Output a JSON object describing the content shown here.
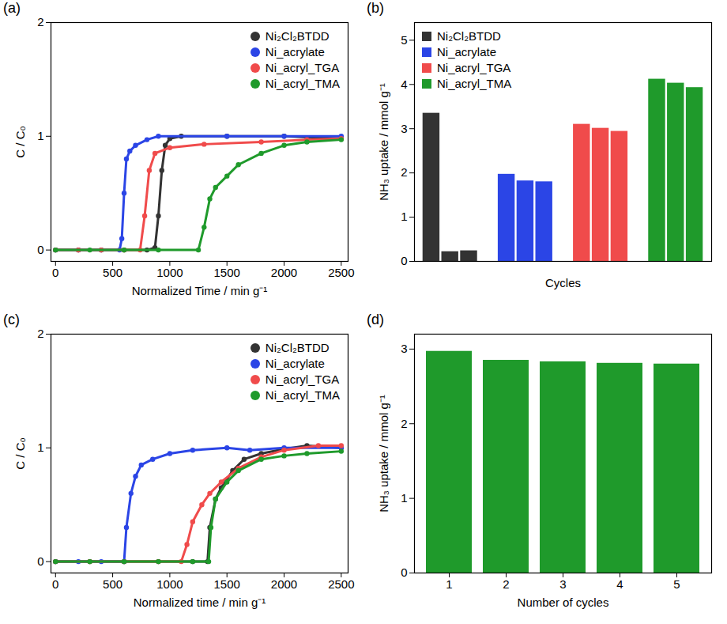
{
  "chart_data": [
    {
      "title": "(a)",
      "type": "line",
      "x_label": "Normalized Time / min g⁻¹",
      "y_label": "C / C₀",
      "xlim": [
        -40,
        2560
      ],
      "xticks": [
        0,
        500,
        1000,
        1500,
        2000,
        2500
      ],
      "ylim": [
        -0.1,
        2
      ],
      "yticks": [
        0,
        1,
        2
      ],
      "legend": "upper right",
      "series": [
        {
          "name": "Ni₂Cl₂BTDD",
          "color": "#333333",
          "marker": "circle",
          "x": [
            0,
            200,
            400,
            600,
            800,
            870,
            900,
            930,
            960,
            1000,
            1100,
            1500,
            2000,
            2500
          ],
          "values": [
            0,
            0,
            0,
            0,
            0,
            0.02,
            0.3,
            0.7,
            0.92,
            0.98,
            1.0,
            1.0,
            1.0,
            0.98
          ]
        },
        {
          "name": "Ni_acrylate",
          "color": "#2b45e6",
          "marker": "circle",
          "x": [
            0,
            200,
            400,
            560,
            580,
            600,
            620,
            650,
            700,
            800,
            900,
            1500,
            2000,
            2500
          ],
          "values": [
            0,
            0,
            0,
            0,
            0.1,
            0.5,
            0.8,
            0.87,
            0.92,
            0.97,
            1.0,
            1.0,
            1.0,
            1.0
          ]
        },
        {
          "name": "Ni_acryl_TGA",
          "color": "#f04b4b",
          "marker": "circle",
          "x": [
            0,
            200,
            400,
            600,
            740,
            780,
            820,
            870,
            1000,
            1300,
            1800,
            2200,
            2500
          ],
          "values": [
            0,
            0,
            0,
            0,
            0,
            0.3,
            0.7,
            0.85,
            0.9,
            0.93,
            0.95,
            0.97,
            0.98
          ]
        },
        {
          "name": "Ni_acryl_TMA",
          "color": "#1f9a2b",
          "marker": "circle",
          "x": [
            0,
            300,
            600,
            900,
            1250,
            1300,
            1350,
            1400,
            1500,
            1600,
            1800,
            2000,
            2200,
            2500
          ],
          "values": [
            0,
            0,
            0,
            0,
            0,
            0.2,
            0.45,
            0.55,
            0.65,
            0.75,
            0.85,
            0.92,
            0.95,
            0.97
          ]
        }
      ]
    },
    {
      "title": "(b)",
      "type": "bar",
      "x_label": "Cycles",
      "y_label": "NH₃ uptake / mmol g⁻¹",
      "categories": [
        null,
        null,
        null
      ],
      "ylim": [
        0,
        5.4
      ],
      "yticks": [
        0,
        1,
        2,
        3,
        4,
        5
      ],
      "legend": "upper left",
      "tick_labels": "y",
      "series": [
        {
          "name": "Ni₂Cl₂BTDD",
          "color": "#333333",
          "values": [
            3.35,
            0.22,
            0.24
          ]
        },
        {
          "name": "Ni_acrylate",
          "color": "#2b45e6",
          "values": [
            1.97,
            1.82,
            1.8
          ]
        },
        {
          "name": "Ni_acryl_TGA",
          "color": "#f04b4b",
          "values": [
            3.1,
            3.01,
            2.94
          ]
        },
        {
          "name": "Ni_acryl_TMA",
          "color": "#1f9a2b",
          "values": [
            4.12,
            4.03,
            3.93
          ]
        }
      ]
    },
    {
      "title": "(c)",
      "type": "line",
      "x_label": "Normalized time / min g⁻¹",
      "y_label": "C / C₀",
      "xlim": [
        -40,
        2560
      ],
      "xticks": [
        0,
        500,
        1000,
        1500,
        2000,
        2500
      ],
      "ylim": [
        -0.1,
        2
      ],
      "yticks": [
        0,
        1,
        2
      ],
      "legend": "upper right",
      "series": [
        {
          "name": "Ni₂Cl₂BTDD",
          "color": "#333333",
          "marker": "circle",
          "x": [
            0,
            300,
            600,
            900,
            1200,
            1330,
            1350,
            1400,
            1450,
            1550,
            1650,
            1800,
            2000,
            2200,
            2500
          ],
          "values": [
            0,
            0,
            0,
            0,
            0,
            0,
            0.3,
            0.55,
            0.65,
            0.8,
            0.9,
            0.95,
            0.99,
            1.02,
            1.0
          ]
        },
        {
          "name": "Ni_acrylate",
          "color": "#2b45e6",
          "marker": "circle",
          "x": [
            0,
            200,
            400,
            600,
            620,
            660,
            700,
            750,
            850,
            1000,
            1200,
            1500,
            1700,
            2000,
            2500
          ],
          "values": [
            0,
            0,
            0,
            0,
            0.3,
            0.6,
            0.75,
            0.85,
            0.9,
            0.95,
            0.98,
            1.0,
            0.98,
            1.0,
            1.0
          ]
        },
        {
          "name": "Ni_acryl_TGA",
          "color": "#f04b4b",
          "marker": "circle",
          "x": [
            0,
            300,
            600,
            900,
            1100,
            1150,
            1200,
            1280,
            1350,
            1450,
            1600,
            1800,
            2000,
            2300,
            2500
          ],
          "values": [
            0,
            0,
            0,
            0,
            0,
            0.15,
            0.35,
            0.5,
            0.6,
            0.7,
            0.82,
            0.92,
            0.98,
            1.02,
            1.02
          ]
        },
        {
          "name": "Ni_acryl_TMA",
          "color": "#1f9a2b",
          "marker": "circle",
          "x": [
            0,
            300,
            600,
            900,
            1200,
            1340,
            1360,
            1400,
            1500,
            1600,
            1800,
            2000,
            2200,
            2500
          ],
          "values": [
            0,
            0,
            0,
            0,
            0,
            0,
            0.3,
            0.55,
            0.7,
            0.8,
            0.9,
            0.93,
            0.95,
            0.97
          ]
        }
      ]
    },
    {
      "title": "(d)",
      "type": "bar",
      "x_label": "Number of cycles",
      "y_label": "NH₃ uptake / mmol g⁻¹",
      "categories": [
        "1",
        "2",
        "3",
        "4",
        "5"
      ],
      "values": [
        2.97,
        2.85,
        2.83,
        2.81,
        2.8
      ],
      "color": "#1f9a2b",
      "ylim": [
        0,
        3.2
      ],
      "yticks": [
        0,
        1,
        2,
        3
      ]
    }
  ]
}
